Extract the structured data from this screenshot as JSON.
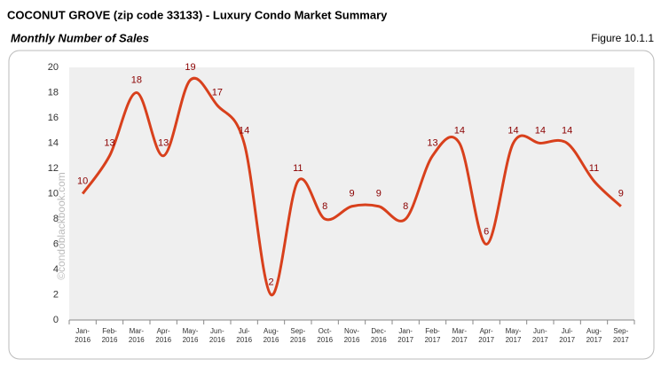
{
  "chart_data": {
    "type": "line",
    "title": "COCONUT GROVE (zip code 33133) - Luxury Condo Market Summary",
    "subtitle": "Monthly Number of Sales",
    "figure_label": "Figure 10.1.1",
    "watermark": "©condoblackbook.com",
    "categories": [
      "Jan-2016",
      "Feb-2016",
      "Mar-2016",
      "Apr-2016",
      "May-2016",
      "Jun-2016",
      "Jul-2016",
      "Aug-2016",
      "Sep-2016",
      "Oct-2016",
      "Nov-2016",
      "Dec-2016",
      "Jan-2017",
      "Feb-2017",
      "Mar-2017",
      "Apr-2017",
      "May-2017",
      "Jun-2017",
      "Jul-2017",
      "Aug-2017",
      "Sep-2017"
    ],
    "series": [
      {
        "name": "Number of Sales",
        "color": "#d8401c",
        "label_color": "#8b0000",
        "values": [
          10,
          13,
          18,
          13,
          19,
          17,
          14,
          2,
          11,
          8,
          9,
          9,
          8,
          13,
          14,
          6,
          14,
          14,
          14,
          11,
          9
        ]
      }
    ],
    "ylim": [
      0,
      20
    ],
    "yticks": [
      0,
      2,
      4,
      6,
      8,
      10,
      12,
      14,
      16,
      18,
      20
    ],
    "grid": false
  }
}
